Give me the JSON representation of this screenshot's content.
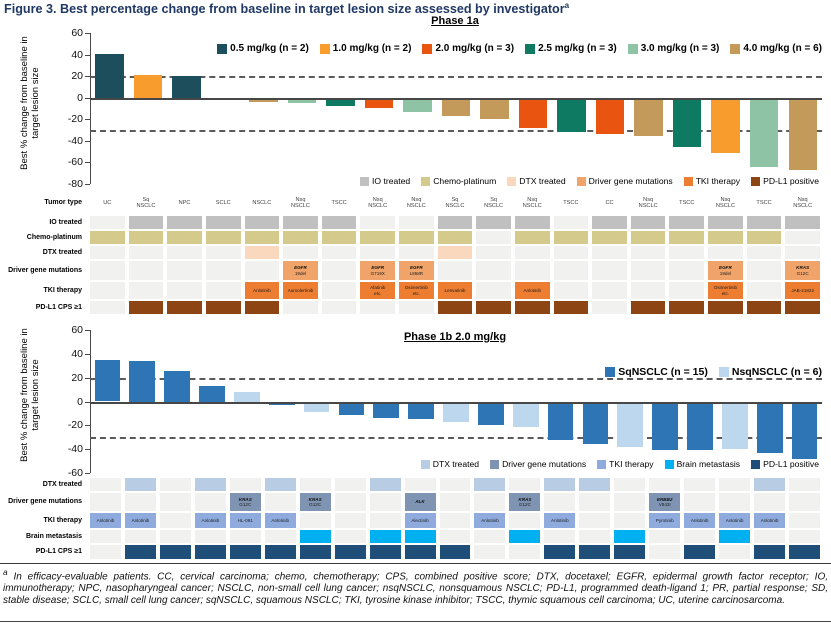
{
  "title": {
    "text": "Figure 3. Best percentage change from baseline in target lesion size assessed by investigator",
    "superscript": "a"
  },
  "footnote": {
    "marker": "a",
    "text": "In efficacy-evaluable patients. CC, cervical carcinoma; chemo, chemotherapy; CPS, combined positive score; DTX, docetaxel; EGFR, epidermal growth factor receptor; IO, immunotherapy; NPC, nasopharyngeal cancer; NSCLC, non-small cell lung cancer; nsqNSCLC, nonsquamous NSCLC; PD-L1, programmed death-ligand 1; PR, partial response; SD, stable disease; SCLC, small cell lung cancer; sqNSCLC, squamous NSCLC; TKI, tyrosine kinase inhibitor; TSCC, thymic squamous cell carcinoma; UC, uterine carcinosarcoma."
  },
  "chart_data": [
    {
      "id": "phase1a",
      "type": "bar",
      "subtitle": "Phase 1a",
      "ylabel": "Best % change from baseline in target lesion size",
      "ylim": [
        -80,
        60
      ],
      "ytick_step": 20,
      "ref_lines": [
        20,
        -30
      ],
      "grid": false,
      "legend_position": "top-right",
      "legend": [
        {
          "label": "0.5 mg/kg (n = 2)",
          "color": "#1c4e5c"
        },
        {
          "label": "1.0 mg/kg (n = 2)",
          "color": "#f79c2d"
        },
        {
          "label": "2.0 mg/kg (n = 3)",
          "color": "#e95511"
        },
        {
          "label": "2.5 mg/kg (n = 3)",
          "color": "#0f7a62"
        },
        {
          "label": "3.0 mg/kg (n = 3)",
          "color": "#8fc3a5"
        },
        {
          "label": "4.0 mg/kg (n = 6)",
          "color": "#c49a5a"
        }
      ],
      "categories": [
        "UC",
        "Sq NSCLC",
        "NPC",
        "SCLC",
        "NSCLC",
        "Nsq NSCLC",
        "TSCC",
        "Nsq NSCLC",
        "Nsq NSCLC",
        "Sq NSCLC",
        "Sq NSCLC",
        "Nsq NSCLC",
        "TSCC",
        "CC",
        "Nsq NSCLC",
        "TSCC",
        "Nsq NSCLC",
        "TSCC",
        "Nsq NSCLC"
      ],
      "values": [
        41,
        21,
        20,
        0,
        -4,
        -5,
        -8,
        -10,
        -13,
        -17,
        -20,
        -28,
        -32,
        -34,
        -36,
        -46,
        -51,
        -64,
        -67
      ],
      "series_index": [
        0,
        1,
        0,
        5,
        5,
        4,
        3,
        2,
        4,
        5,
        5,
        2,
        3,
        2,
        5,
        3,
        1,
        4,
        5
      ]
    },
    {
      "id": "phase1b",
      "type": "bar",
      "subtitle": "Phase 1b 2.0 mg/kg",
      "ylabel": "Best % change from baseline in target lesion size",
      "ylim": [
        -60,
        60
      ],
      "ytick_step": 20,
      "ref_lines": [
        20,
        -30
      ],
      "grid": false,
      "legend_position": "top-right",
      "legend": [
        {
          "label": "SqNSCLC (n = 15)",
          "color": "#2e75b6"
        },
        {
          "label": "NsqNSCLC (n = 6)",
          "color": "#bdd7ee"
        }
      ],
      "values": [
        35,
        34,
        26,
        13,
        8,
        -3,
        -9,
        -11,
        -14,
        -15,
        -17,
        -20,
        -21,
        -32,
        -36,
        -38,
        -41,
        -41,
        -40,
        -43,
        -48
      ],
      "series_index": [
        0,
        0,
        0,
        0,
        1,
        0,
        1,
        0,
        0,
        0,
        1,
        0,
        1,
        0,
        0,
        1,
        0,
        0,
        1,
        0,
        0
      ]
    }
  ],
  "annotation_legends": {
    "phase1a": [
      {
        "label": "IO treated",
        "color": "#c0c0c0"
      },
      {
        "label": "Chemo-platinum",
        "color": "#d3ca8c"
      },
      {
        "label": "DTX treated",
        "color": "#f9d8bd"
      },
      {
        "label": "Driver gene mutations",
        "color": "#f1a469"
      },
      {
        "label": "TKI therapy",
        "color": "#ed7d31"
      },
      {
        "label": "PD-L1 positive",
        "color": "#8c4513"
      }
    ],
    "phase1b": [
      {
        "label": "DTX treated",
        "color": "#b8cce4"
      },
      {
        "label": "Driver gene mutations",
        "color": "#7f93b2"
      },
      {
        "label": "TKI therapy",
        "color": "#8faadc"
      },
      {
        "label": "Brain metastasis",
        "color": "#00b0f0"
      },
      {
        "label": "PD-L1 positive",
        "color": "#1f4e79"
      }
    ]
  },
  "tables": {
    "phase1a": {
      "columns": 19,
      "rows": [
        {
          "label": "Tumor type",
          "type": "header",
          "cells": [
            "UC",
            "Sq\nNSCLC",
            "NPC",
            "SCLC",
            "NSCLC",
            "Nsq\nNSCLC",
            "TSCC",
            "Nsq\nNSCLC",
            "Nsq\nNSCLC",
            "Sq\nNSCLC",
            "Sq\nNSCLC",
            "Nsq\nNSCLC",
            "TSCC",
            "CC",
            "Nsq\nNSCLC",
            "TSCC",
            "Nsq\nNSCLC",
            "TSCC",
            "Nsq\nNSCLC"
          ]
        },
        {
          "label": "IO treated",
          "fill": "#c0c0c0",
          "cells": [
            0,
            1,
            1,
            1,
            1,
            1,
            1,
            0,
            0,
            1,
            1,
            1,
            0,
            1,
            1,
            1,
            1,
            1,
            1
          ]
        },
        {
          "label": "Chemo-platinum",
          "fill": "#d3ca8c",
          "cells": [
            1,
            1,
            1,
            1,
            1,
            1,
            1,
            1,
            1,
            1,
            0,
            1,
            1,
            1,
            1,
            1,
            1,
            1,
            0
          ]
        },
        {
          "label": "DTX treated",
          "fill": "#f9d8bd",
          "cells": [
            0,
            0,
            0,
            0,
            1,
            0,
            0,
            0,
            0,
            1,
            0,
            0,
            0,
            0,
            0,
            0,
            0,
            0,
            0
          ]
        },
        {
          "label": "Driver gene mutations",
          "fill": "#f1a469",
          "gene": true,
          "cells": [
            0,
            0,
            0,
            0,
            0,
            "EGFR\n19del",
            0,
            "EGFR\nG719X",
            "EGFR\nL858R",
            0,
            0,
            0,
            0,
            0,
            0,
            0,
            "EGFR\n19del",
            0,
            "KRAS\nG12C"
          ]
        },
        {
          "label": "TKI therapy",
          "fill": "#ed7d31",
          "cells": [
            0,
            0,
            0,
            0,
            "Anlotinib",
            "Aumolertinib",
            0,
            "Afatinib\netc.",
            "Osimertinib\netc.",
            "Lenvatinib",
            0,
            "Anlotinib",
            0,
            0,
            0,
            0,
            "Osimertinib\netc.",
            0,
            "JAB-21822"
          ]
        },
        {
          "label": "PD-L1 CPS ≥1",
          "fill": "#8c4513",
          "cells": [
            0,
            1,
            1,
            1,
            1,
            0,
            0,
            0,
            0,
            1,
            1,
            1,
            1,
            0,
            1,
            1,
            1,
            1,
            1
          ]
        }
      ]
    },
    "phase1b": {
      "columns": 21,
      "rows": [
        {
          "label": "DTX treated",
          "fill": "#b8cce4",
          "cells": [
            0,
            1,
            0,
            1,
            0,
            1,
            0,
            0,
            1,
            0,
            0,
            1,
            0,
            1,
            1,
            0,
            0,
            0,
            0,
            1,
            0
          ]
        },
        {
          "label": "Driver gene mutations",
          "fill": "#7f93b2",
          "gene": true,
          "cells": [
            0,
            0,
            0,
            0,
            "KRAS\nG12C",
            0,
            "KRAS\nG12C",
            0,
            0,
            "ALK",
            0,
            0,
            "KRAS\nG12C",
            0,
            0,
            0,
            "ERBB2\nV842I",
            0,
            0,
            0,
            0
          ]
        },
        {
          "label": "TKI therapy",
          "fill": "#8faadc",
          "cells": [
            "Anlotinib",
            "Anlotinib",
            0,
            "Anlotinib",
            "HL-091",
            "Anlotinib",
            0,
            0,
            0,
            "Alectinib",
            0,
            "Anlotinib",
            0,
            "Anlotinib",
            0,
            0,
            "Pyrotinib",
            "Anlotinib",
            "Anlotinib",
            "Anlotinib",
            0
          ]
        },
        {
          "label": "Brain metastasis",
          "fill": "#00b0f0",
          "cells": [
            0,
            0,
            0,
            0,
            0,
            0,
            1,
            0,
            1,
            1,
            0,
            0,
            1,
            0,
            0,
            1,
            0,
            0,
            1,
            0,
            0
          ]
        },
        {
          "label": "PD-L1 CPS ≥1",
          "fill": "#1f4e79",
          "cells": [
            0,
            1,
            1,
            1,
            1,
            1,
            1,
            1,
            1,
            1,
            1,
            0,
            0,
            1,
            1,
            1,
            0,
            1,
            0,
            1,
            1
          ]
        }
      ]
    }
  }
}
